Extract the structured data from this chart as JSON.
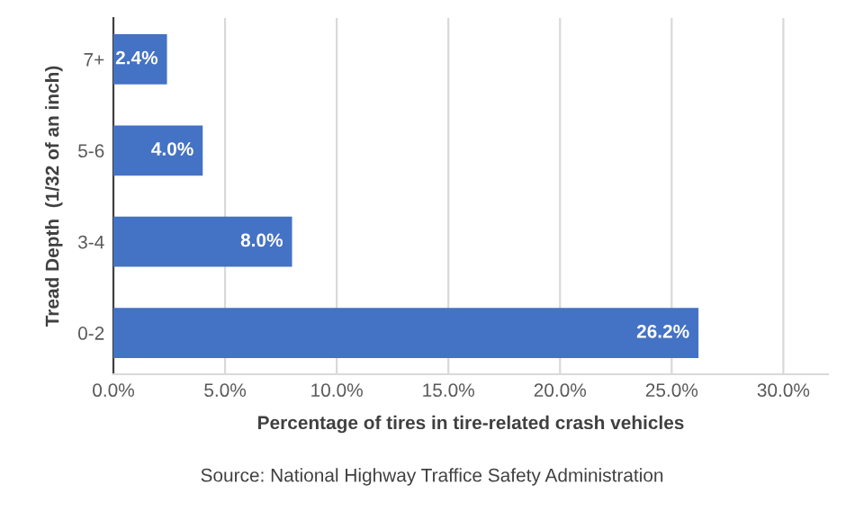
{
  "chart_data": {
    "type": "bar",
    "orientation": "horizontal",
    "categories": [
      "7+",
      "5-6",
      "3-4",
      "0-2"
    ],
    "values": [
      2.4,
      4.0,
      8.0,
      26.2
    ],
    "value_labels": [
      "2.4%",
      "4.0%",
      "8.0%",
      "26.2%"
    ],
    "color": "#4472c4",
    "xlim": [
      0,
      32
    ],
    "xticks": [
      {
        "value": 0,
        "label": "0.0%"
      },
      {
        "value": 5,
        "label": "5.0%"
      },
      {
        "value": 10,
        "label": "10.0%"
      },
      {
        "value": 15,
        "label": "15.0%"
      },
      {
        "value": 20,
        "label": "20.0%"
      },
      {
        "value": 25,
        "label": "25.0%"
      },
      {
        "value": 30,
        "label": "30.0%"
      }
    ],
    "grid": "x",
    "xlabel": "Percentage of tires in tire-related crash vehicles",
    "ylabel": "Tread Depth  (1/32 of an inch)",
    "annotations": [
      "Source: National Highway Traffice Safety Administration"
    ]
  }
}
